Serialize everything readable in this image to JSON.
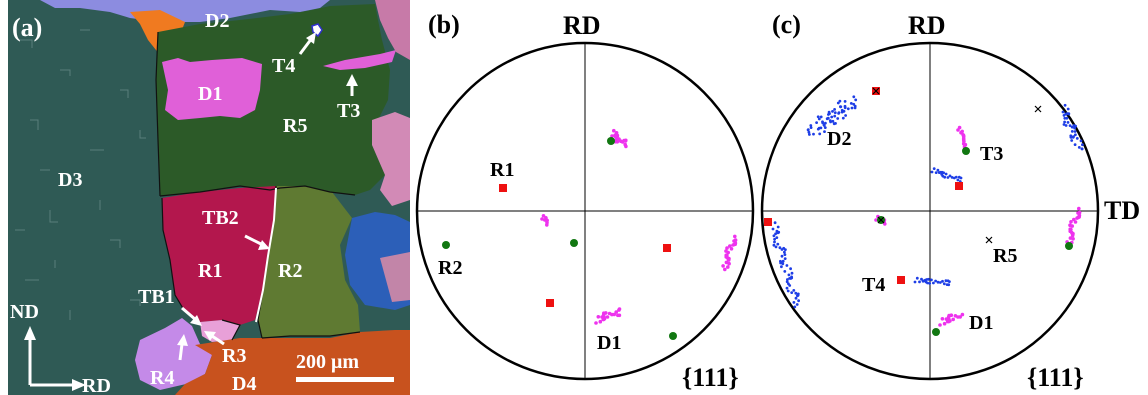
{
  "panels": {
    "a": {
      "label": "(a)",
      "grain_labels": [
        "D1",
        "D2",
        "D3",
        "D4",
        "R1",
        "R2",
        "R3",
        "R4",
        "R5",
        "T3",
        "T4",
        "TB1",
        "TB2"
      ],
      "axis_nd": "ND",
      "axis_rd": "RD",
      "scale_bar": "200 μm"
    },
    "b": {
      "label": "(b)",
      "top_label": "RD",
      "index": "{111}",
      "annotations": [
        "R1",
        "R2",
        "D1"
      ]
    },
    "c": {
      "label": "(c)",
      "top_label": "RD",
      "right_label": "TD",
      "index": "{111}",
      "annotations": [
        "D2",
        "T3",
        "R5",
        "T4",
        "D1"
      ]
    }
  },
  "colors": {
    "grain_D3": "#2f5a55",
    "grain_R5": "#2c5a28",
    "grain_R1": "#b3174d",
    "grain_R2": "#5f7a32",
    "grain_D1": "#e060d8",
    "grain_D2": "#8c8ce0",
    "grain_D4": "#c8521e",
    "red_markers": "#ee1111",
    "green_markers": "#117711",
    "magenta_scatter": "#ee33ee",
    "blue_scatter": "#1e3ee6"
  }
}
